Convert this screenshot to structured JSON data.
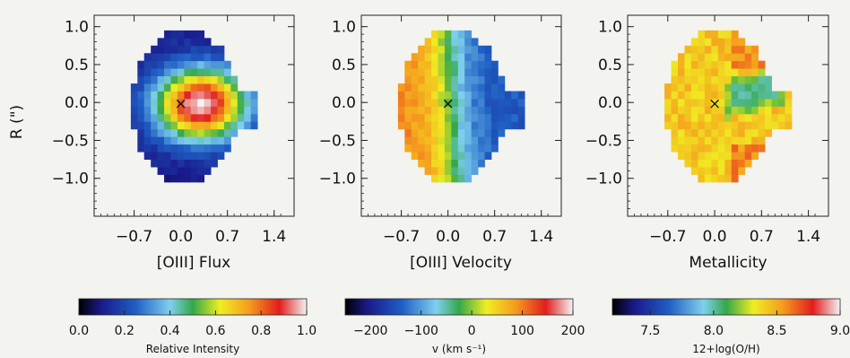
{
  "chart_data": [
    {
      "type": "heatmap",
      "title": "[OIII] Flux",
      "ylabel": "R (\")",
      "x_ticks": [
        "−0.7",
        "0.0",
        "0.7",
        "1.4"
      ],
      "x_tick_values": [
        -0.7,
        0.0,
        0.7,
        1.4
      ],
      "y_ticks": [
        "1.0",
        "0.5",
        "0.0",
        "−0.5",
        "−1.0"
      ],
      "y_tick_values": [
        1.0,
        0.5,
        0.0,
        -0.5,
        -1.0
      ],
      "xlim": [
        -1.3,
        1.7
      ],
      "ylim": [
        -1.5,
        1.15
      ],
      "center_marker": {
        "x": 0.0,
        "y": 0.0,
        "symbol": "×"
      },
      "colorbar": {
        "label": "Relative Intensity",
        "range": [
          0.0,
          1.0
        ],
        "ticks": [
          "0.0",
          "0.2",
          "0.4",
          "0.6",
          "0.8",
          "1.0"
        ],
        "tick_values": [
          0.0,
          0.2,
          0.4,
          0.6,
          0.8,
          1.0
        ]
      },
      "pattern": "centrally peaked emission, peak offset to +x"
    },
    {
      "type": "heatmap",
      "title": "[OIII] Velocity",
      "x_ticks": [
        "−0.7",
        "0.0",
        "0.7",
        "1.4"
      ],
      "x_tick_values": [
        -0.7,
        0.0,
        0.7,
        1.4
      ],
      "y_ticks": [
        "1.0",
        "0.5",
        "0.0",
        "−0.5",
        "−1.0"
      ],
      "y_tick_values": [
        1.0,
        0.5,
        0.0,
        -0.5,
        -1.0
      ],
      "xlim": [
        -1.3,
        1.7
      ],
      "ylim": [
        -1.5,
        1.15
      ],
      "center_marker": {
        "x": 0.0,
        "y": 0.0,
        "symbol": "×"
      },
      "colorbar": {
        "label": "v (km s⁻¹)",
        "range": [
          -250,
          200
        ],
        "ticks": [
          "−200",
          "−100",
          "0",
          "100",
          "200"
        ],
        "tick_values": [
          -200,
          -100,
          0,
          100,
          200
        ]
      },
      "pattern": "velocity gradient: positive on the -x side, negative on the +x side"
    },
    {
      "type": "heatmap",
      "title": "Metallicity",
      "x_ticks": [
        "−0.7",
        "0.0",
        "0.7",
        "1.4"
      ],
      "x_tick_values": [
        -0.7,
        0.0,
        0.7,
        1.4
      ],
      "y_ticks": [
        "1.0",
        "0.5",
        "0.0",
        "−0.5",
        "−1.0"
      ],
      "y_tick_values": [
        1.0,
        0.5,
        0.0,
        -0.5,
        -1.0
      ],
      "xlim": [
        -1.3,
        1.7
      ],
      "ylim": [
        -1.5,
        1.15
      ],
      "center_marker": {
        "x": 0.0,
        "y": 0.0,
        "symbol": "×"
      },
      "colorbar": {
        "label": "12+log(O/H)",
        "range": [
          7.2,
          9.0
        ],
        "ticks": [
          "7.5",
          "8.0",
          "8.5",
          "9.0"
        ],
        "tick_values": [
          7.5,
          8.0,
          8.5,
          9.0
        ]
      },
      "pattern": "mostly ~8.4 yellow, lower-metallicity band (~8.0) to the upper right of center"
    }
  ],
  "colors": {
    "background": "#f3f3ef",
    "colormap": [
      "#000000",
      "#1a1a8c",
      "#1f5fc4",
      "#7fd0ee",
      "#33a84a",
      "#f0ee22",
      "#f59a1e",
      "#e21d1d",
      "#f4f4f4"
    ],
    "marker": "#222266"
  }
}
